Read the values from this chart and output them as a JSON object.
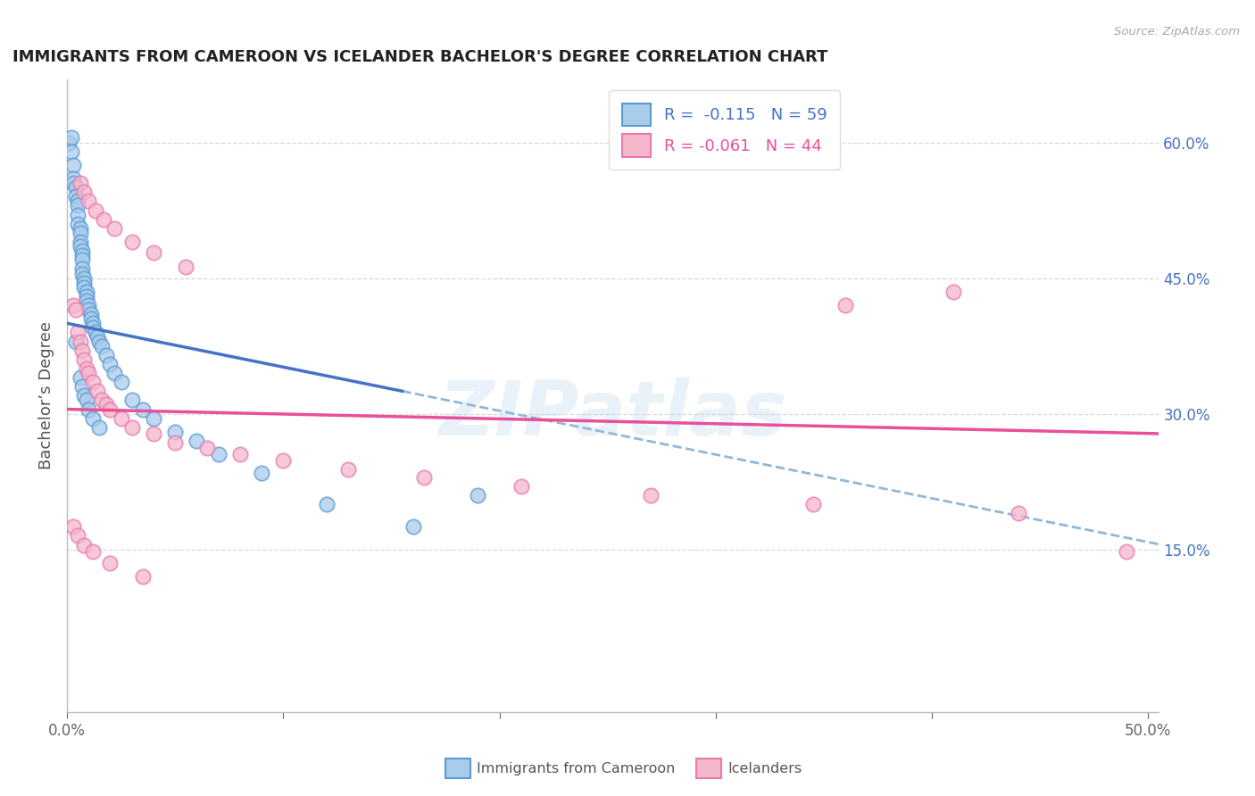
{
  "title": "IMMIGRANTS FROM CAMEROON VS ICELANDER BACHELOR'S DEGREE CORRELATION CHART",
  "source": "Source: ZipAtlas.com",
  "ylabel": "Bachelor’s Degree",
  "legend_label1": "Immigrants from Cameroon",
  "legend_label2": "Icelanders",
  "R1": -0.115,
  "N1": 59,
  "R2": -0.061,
  "N2": 44,
  "xlim": [
    0.0,
    0.505
  ],
  "ylim": [
    -0.03,
    0.67
  ],
  "right_ytick_vals": [
    0.0,
    0.15,
    0.3,
    0.45,
    0.6
  ],
  "right_yticklabels": [
    "",
    "15.0%",
    "30.0%",
    "45.0%",
    "60.0%"
  ],
  "color_blue_fill": "#A8CCEA",
  "color_blue_edge": "#5B9BD5",
  "color_blue_line": "#4472C4",
  "color_pink_fill": "#F5B8CB",
  "color_pink_edge": "#E878B0",
  "color_pink_line": "#E8509A",
  "color_dashed": "#90B8D8",
  "watermark_text": "ZIPatlas",
  "blue_x": [
    0.001,
    0.002,
    0.002,
    0.003,
    0.003,
    0.003,
    0.004,
    0.004,
    0.005,
    0.005,
    0.005,
    0.005,
    0.006,
    0.006,
    0.006,
    0.006,
    0.007,
    0.007,
    0.007,
    0.007,
    0.007,
    0.008,
    0.008,
    0.008,
    0.009,
    0.009,
    0.009,
    0.01,
    0.01,
    0.011,
    0.011,
    0.012,
    0.012,
    0.013,
    0.014,
    0.015,
    0.016,
    0.018,
    0.02,
    0.022,
    0.025,
    0.03,
    0.035,
    0.04,
    0.05,
    0.06,
    0.07,
    0.09,
    0.12,
    0.16,
    0.004,
    0.006,
    0.007,
    0.008,
    0.009,
    0.01,
    0.012,
    0.015,
    0.19
  ],
  "blue_y": [
    0.6,
    0.605,
    0.59,
    0.575,
    0.56,
    0.555,
    0.55,
    0.54,
    0.535,
    0.53,
    0.52,
    0.51,
    0.505,
    0.5,
    0.49,
    0.485,
    0.48,
    0.475,
    0.47,
    0.46,
    0.455,
    0.45,
    0.445,
    0.44,
    0.435,
    0.43,
    0.425,
    0.42,
    0.415,
    0.41,
    0.405,
    0.4,
    0.395,
    0.39,
    0.385,
    0.38,
    0.375,
    0.365,
    0.355,
    0.345,
    0.335,
    0.315,
    0.305,
    0.295,
    0.28,
    0.27,
    0.255,
    0.235,
    0.2,
    0.175,
    0.38,
    0.34,
    0.33,
    0.32,
    0.315,
    0.305,
    0.295,
    0.285,
    0.21
  ],
  "pink_x": [
    0.003,
    0.004,
    0.005,
    0.006,
    0.007,
    0.008,
    0.009,
    0.01,
    0.012,
    0.014,
    0.016,
    0.018,
    0.02,
    0.025,
    0.03,
    0.04,
    0.05,
    0.065,
    0.08,
    0.1,
    0.13,
    0.165,
    0.21,
    0.27,
    0.345,
    0.44,
    0.49,
    0.006,
    0.008,
    0.01,
    0.013,
    0.017,
    0.022,
    0.03,
    0.04,
    0.055,
    0.36,
    0.41,
    0.003,
    0.005,
    0.008,
    0.012,
    0.02,
    0.035
  ],
  "pink_y": [
    0.42,
    0.415,
    0.39,
    0.38,
    0.37,
    0.36,
    0.35,
    0.345,
    0.335,
    0.325,
    0.315,
    0.31,
    0.305,
    0.295,
    0.285,
    0.278,
    0.268,
    0.262,
    0.255,
    0.248,
    0.238,
    0.23,
    0.22,
    0.21,
    0.2,
    0.19,
    0.148,
    0.555,
    0.545,
    0.535,
    0.525,
    0.515,
    0.505,
    0.49,
    0.478,
    0.462,
    0.42,
    0.435,
    0.175,
    0.165,
    0.155,
    0.148,
    0.135,
    0.12
  ],
  "blue_line_x_end": 0.155,
  "full_line_x_end": 0.505
}
